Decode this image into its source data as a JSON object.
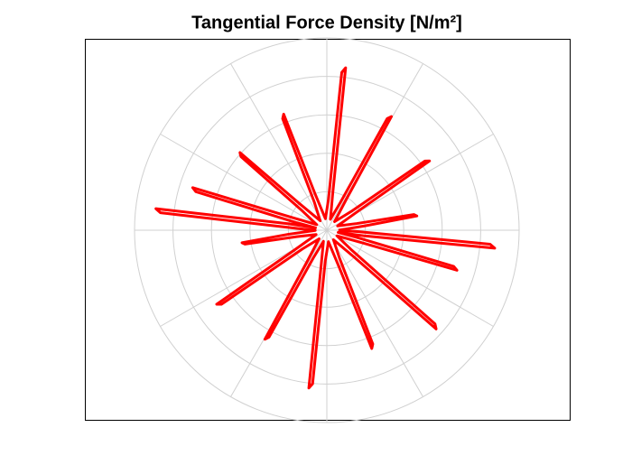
{
  "chart_data": {
    "type": "polar",
    "title": "Tangential Force Density [N/m²]",
    "rlim": [
      0,
      5
    ],
    "rticks": [
      1,
      2,
      3,
      4,
      5
    ],
    "thetaticks": [
      0,
      30,
      60,
      90,
      120,
      150,
      180,
      210,
      240,
      270,
      300,
      330
    ],
    "grid": true,
    "series": [
      {
        "color": "#ff0000",
        "theta": [
          0,
          6.6,
          9.0,
          10.2,
          12.6,
          22,
          31.6,
          34.0,
          35.2,
          37.6,
          48,
          58,
          60.4,
          61.6,
          64,
          72,
          81,
          83.4,
          84.6,
          87,
          97,
          108,
          110.4,
          111.6,
          114,
          125,
          135.8,
          138.2,
          139.4,
          141.8,
          151,
          160,
          162.4,
          163.6,
          166,
          168,
          170.4,
          172.8,
          174.0,
          176.4,
          181,
          186,
          188.4,
          189.6,
          192,
          202,
          211.5,
          213.9,
          215.1,
          217.5,
          228,
          238,
          240.4,
          241.6,
          244,
          253,
          261.1,
          263.5,
          264.7,
          267.1,
          278,
          288.4,
          290.8,
          292,
          294.4,
          305,
          315.5,
          317.9,
          319.1,
          321.5,
          331,
          340.5,
          342.9,
          344.1,
          346.5,
          349,
          351.5,
          353.9,
          355.1,
          357.5,
          360
        ],
        "r": [
          0.3,
          1.0,
          2.37,
          2.3,
          0.8,
          0.3,
          1.0,
          3.22,
          3.12,
          0.8,
          0.3,
          1.0,
          3.4,
          3.3,
          0.8,
          0.3,
          1.0,
          4.25,
          4.12,
          0.8,
          0.3,
          1.0,
          3.22,
          3.12,
          0.8,
          0.3,
          1.0,
          3.03,
          2.94,
          0.8,
          0.3,
          1.0,
          3.66,
          3.55,
          0.8,
          0.3,
          1.0,
          4.48,
          4.35,
          0.8,
          0.3,
          1.0,
          2.23,
          2.16,
          0.8,
          0.3,
          1.0,
          3.45,
          3.35,
          0.8,
          0.3,
          1.0,
          3.26,
          3.16,
          0.8,
          0.3,
          1.0,
          4.13,
          4.01,
          0.8,
          0.3,
          1.0,
          3.29,
          3.19,
          0.8,
          0.3,
          1.0,
          3.83,
          3.72,
          0.8,
          0.3,
          1.0,
          3.54,
          3.43,
          0.8,
          0.3,
          1.0,
          4.39,
          4.26,
          0.8,
          0.3
        ]
      }
    ]
  }
}
